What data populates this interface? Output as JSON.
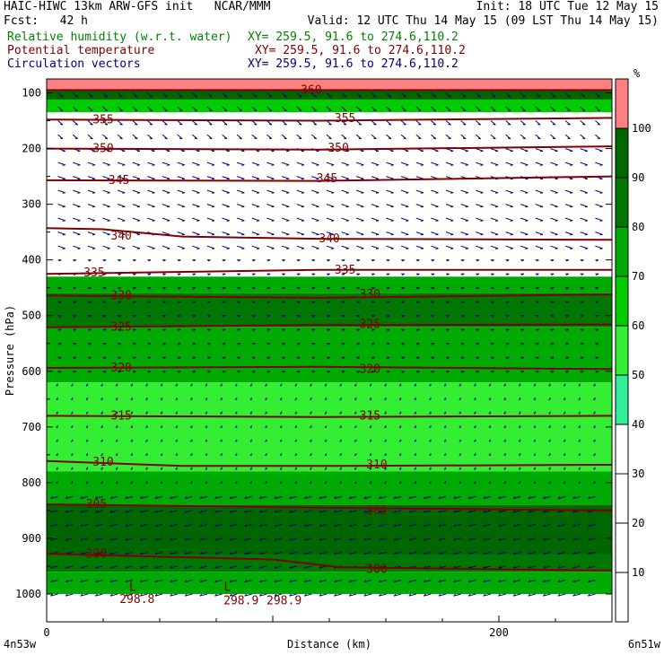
{
  "header": {
    "line1_left": "HAIC-HIWC 13km ARW-GFS init   NCAR/MMM",
    "line1_right": "Init: 18 UTC Tue 12 May 15",
    "line2_left": "Fcst:   42 h",
    "line2_right": "Valid: 12 UTC Thu 14 May 15 (09 LST Thu 14 May 15)",
    "fields": [
      {
        "name": "Relative humidity (w.r.t. water)",
        "xy": "XY= 259.5, 91.6 to 274.6,110.2",
        "color": "#008000"
      },
      {
        "name": "Potential temperature",
        "xy": "XY= 259.5, 91.6 to 274.6,110.2",
        "color": "#800000"
      },
      {
        "name": "Circulation vectors",
        "xy": "XY= 259.5, 91.6 to 274.6,110.2",
        "color": "#000080"
      }
    ]
  },
  "chart_data": {
    "type": "heatmap",
    "xlabel": "Distance (km)",
    "ylabel": "Pressure (hPa)",
    "x_range": [
      0,
      250
    ],
    "y_range": [
      1050,
      75
    ],
    "x_ticks": [
      0,
      200
    ],
    "y_ticks": [
      100,
      200,
      300,
      400,
      500,
      600,
      700,
      800,
      900,
      1000
    ],
    "x_end_labels": [
      "4n53w",
      "6n51w"
    ],
    "colorbar": {
      "unit": "%",
      "levels": [
        10,
        20,
        30,
        40,
        50,
        60,
        70,
        80,
        90,
        100
      ],
      "colors": [
        "#ffffff",
        "#ffffff",
        "#ffffff",
        "#ffffff",
        "#ffffff",
        "#33ee99",
        "#33ee33",
        "#00cc00",
        "#00aa00",
        "#007700",
        "#006600",
        "#ff8080"
      ]
    },
    "rh_bands": [
      {
        "from": 75,
        "to": 95,
        "rh": 101
      },
      {
        "from": 95,
        "to": 112,
        "rh": 95
      },
      {
        "from": 112,
        "to": 135,
        "rh": 65
      },
      {
        "from": 135,
        "to": 430,
        "rh": 30
      },
      {
        "from": 430,
        "to": 460,
        "rh": 75
      },
      {
        "from": 460,
        "to": 520,
        "rh": 85
      },
      {
        "from": 520,
        "to": 620,
        "rh": 75
      },
      {
        "from": 620,
        "to": 780,
        "rh": 55
      },
      {
        "from": 780,
        "to": 840,
        "rh": 75
      },
      {
        "from": 840,
        "to": 930,
        "rh": 95
      },
      {
        "from": 930,
        "to": 960,
        "rh": 85
      },
      {
        "from": 960,
        "to": 1000,
        "rh": 75
      }
    ],
    "theta_contours": [
      {
        "value": 360,
        "label": "360",
        "points": [
          [
            0,
            95
          ],
          [
            250,
            95
          ]
        ]
      },
      {
        "value": 355,
        "label": "355",
        "points": [
          [
            0,
            148
          ],
          [
            120,
            150
          ],
          [
            250,
            145
          ]
        ]
      },
      {
        "value": 350,
        "label": "350",
        "points": [
          [
            0,
            200
          ],
          [
            120,
            202
          ],
          [
            250,
            196
          ]
        ]
      },
      {
        "value": 345,
        "label": "345",
        "points": [
          [
            0,
            257
          ],
          [
            120,
            258
          ],
          [
            250,
            250
          ]
        ]
      },
      {
        "value": 340,
        "label": "340",
        "points": [
          [
            0,
            343
          ],
          [
            25,
            345
          ],
          [
            60,
            358
          ],
          [
            120,
            362
          ],
          [
            250,
            364
          ]
        ]
      },
      {
        "value": 335,
        "label": "335",
        "points": [
          [
            0,
            425
          ],
          [
            120,
            418
          ],
          [
            250,
            418
          ]
        ]
      },
      {
        "value": 330,
        "label": "330",
        "points": [
          [
            0,
            464
          ],
          [
            120,
            468
          ],
          [
            250,
            462
          ]
        ]
      },
      {
        "value": 325,
        "label": "325",
        "points": [
          [
            0,
            521
          ],
          [
            120,
            517
          ],
          [
            250,
            516
          ]
        ]
      },
      {
        "value": 320,
        "label": "320",
        "points": [
          [
            0,
            594
          ],
          [
            120,
            592
          ],
          [
            250,
            596
          ]
        ]
      },
      {
        "value": 315,
        "label": "315",
        "points": [
          [
            0,
            680
          ],
          [
            120,
            682
          ],
          [
            250,
            680
          ]
        ]
      },
      {
        "value": 310,
        "label": "310",
        "points": [
          [
            0,
            761
          ],
          [
            60,
            770
          ],
          [
            120,
            770
          ],
          [
            250,
            768
          ]
        ]
      },
      {
        "value": 305,
        "label": "305",
        "points": [
          [
            0,
            839
          ],
          [
            60,
            842
          ],
          [
            120,
            845
          ],
          [
            250,
            850
          ]
        ]
      },
      {
        "value": 300,
        "label": "300",
        "points": [
          [
            0,
            928
          ],
          [
            60,
            934
          ],
          [
            100,
            938
          ],
          [
            130,
            952
          ],
          [
            250,
            958
          ]
        ]
      }
    ],
    "theta_labels": [
      {
        "text": "360",
        "x": 117,
        "p": 95
      },
      {
        "text": "355",
        "x": 25,
        "p": 148
      },
      {
        "text": "355",
        "x": 132,
        "p": 146
      },
      {
        "text": "350",
        "x": 25,
        "p": 200
      },
      {
        "text": "350",
        "x": 129,
        "p": 199
      },
      {
        "text": "345",
        "x": 32,
        "p": 257
      },
      {
        "text": "345",
        "x": 124,
        "p": 254
      },
      {
        "text": "340",
        "x": 33,
        "p": 357
      },
      {
        "text": "340",
        "x": 125,
        "p": 362
      },
      {
        "text": "335",
        "x": 21,
        "p": 423
      },
      {
        "text": "335",
        "x": 132,
        "p": 418
      },
      {
        "text": "330",
        "x": 33,
        "p": 464
      },
      {
        "text": "330",
        "x": 143,
        "p": 462
      },
      {
        "text": "325",
        "x": 33,
        "p": 521
      },
      {
        "text": "325",
        "x": 143,
        "p": 516
      },
      {
        "text": "320",
        "x": 33,
        "p": 594
      },
      {
        "text": "320",
        "x": 143,
        "p": 596
      },
      {
        "text": "315",
        "x": 33,
        "p": 680
      },
      {
        "text": "315",
        "x": 143,
        "p": 680
      },
      {
        "text": "310",
        "x": 25,
        "p": 763
      },
      {
        "text": "310",
        "x": 146,
        "p": 768
      },
      {
        "text": "305",
        "x": 22,
        "p": 839
      },
      {
        "text": "305",
        "x": 146,
        "p": 850
      },
      {
        "text": "300",
        "x": 22,
        "p": 928
      },
      {
        "text": "300",
        "x": 146,
        "p": 956
      }
    ],
    "extrema_labels": [
      {
        "text": "298.8",
        "x": 40,
        "p": 1010
      },
      {
        "text": "298.9",
        "x": 86,
        "p": 1012
      },
      {
        "text": "298.9",
        "x": 105,
        "p": 1012
      }
    ],
    "low_markers": [
      {
        "text": "L",
        "x": 38,
        "p": 988
      },
      {
        "text": "L",
        "x": 80,
        "p": 988
      }
    ],
    "wind_regions": [
      {
        "from": 100,
        "to": 200,
        "u": 0.6,
        "v": -0.5
      },
      {
        "from": 200,
        "to": 400,
        "u": 0.9,
        "v": -0.3
      },
      {
        "from": 400,
        "to": 620,
        "u": 0.4,
        "v": 0
      },
      {
        "from": 620,
        "to": 820,
        "u": -0.2,
        "v": -0.1
      },
      {
        "from": 820,
        "to": 1000,
        "u": -0.9,
        "v": -0.25
      }
    ]
  }
}
